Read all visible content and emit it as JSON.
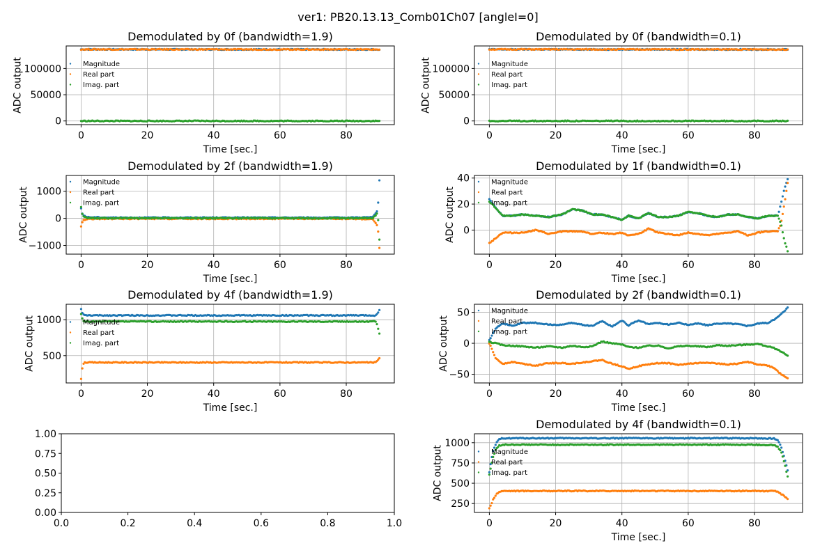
{
  "figure": {
    "suptitle": "ver1: PB20.13.13_Comb01Ch07 [angleI=0]"
  },
  "colors": {
    "magnitude": "#1f77b4",
    "real": "#ff7f0e",
    "imag": "#2ca02c",
    "grid": "#b0b0b0"
  },
  "chart_data": [
    {
      "id": "p00",
      "type": "scatter",
      "title": "Demodulated by 0f (bandwidth=1.9)",
      "xlabel": "Time [sec.]",
      "ylabel": "ADC output",
      "xlim": [
        -4.5,
        94.5
      ],
      "ylim": [
        -7000,
        143000
      ],
      "xticks": [
        0,
        20,
        40,
        60,
        80
      ],
      "yticks": [
        0,
        50000,
        100000
      ],
      "ytick_labels": [
        "0",
        "50000",
        "100000"
      ],
      "grid": true,
      "legend": {
        "position": "center-left",
        "entries": [
          "Magnitude",
          "Real part",
          "Imag. part"
        ]
      },
      "series": [
        {
          "name": "Magnitude",
          "x": [
            0,
            90
          ],
          "y": [
            136500,
            136300
          ]
        },
        {
          "name": "Real part",
          "x": [
            0,
            90
          ],
          "y": [
            136500,
            136300
          ]
        },
        {
          "name": "Imag. part",
          "x": [
            0,
            90
          ],
          "y": [
            0,
            0
          ]
        }
      ]
    },
    {
      "id": "p01",
      "type": "scatter",
      "title": "Demodulated by 0f (bandwidth=0.1)",
      "xlabel": "Time [sec.]",
      "ylabel": "ADC output",
      "xlim": [
        -4.5,
        94.5
      ],
      "ylim": [
        -7000,
        143000
      ],
      "xticks": [
        0,
        20,
        40,
        60,
        80
      ],
      "yticks": [
        0,
        50000,
        100000
      ],
      "ytick_labels": [
        "0",
        "50000",
        "100000"
      ],
      "grid": true,
      "legend": {
        "position": "center-left",
        "entries": [
          "Magnitude",
          "Real part",
          "Imag. part"
        ]
      },
      "series": [
        {
          "name": "Magnitude",
          "x": [
            0,
            90
          ],
          "y": [
            136500,
            136300
          ]
        },
        {
          "name": "Real part",
          "x": [
            0,
            90
          ],
          "y": [
            136500,
            136300
          ]
        },
        {
          "name": "Imag. part",
          "x": [
            0,
            90
          ],
          "y": [
            0,
            0
          ]
        }
      ]
    },
    {
      "id": "p10",
      "type": "scatter",
      "title": "Demodulated by 2f (bandwidth=1.9)",
      "xlabel": "Time [sec.]",
      "ylabel": "ADC output",
      "xlim": [
        -4.5,
        94.5
      ],
      "ylim": [
        -1320,
        1580
      ],
      "xticks": [
        0,
        20,
        40,
        60,
        80
      ],
      "yticks": [
        -1000,
        0,
        1000
      ],
      "ytick_labels": [
        "−1000",
        "0",
        "1000"
      ],
      "grid": true,
      "legend": {
        "position": "top-left",
        "entries": [
          "Magnitude",
          "Real part",
          "Imag. part"
        ]
      },
      "series": [
        {
          "name": "Magnitude",
          "x": [
            0,
            0.5,
            2,
            10,
            20,
            30,
            40,
            50,
            60,
            70,
            80,
            88,
            89.5,
            90
          ],
          "y": [
            350,
            120,
            40,
            25,
            25,
            25,
            25,
            25,
            25,
            25,
            25,
            40,
            300,
            1400
          ]
        },
        {
          "name": "Real part",
          "x": [
            0,
            0.5,
            2,
            10,
            20,
            30,
            40,
            50,
            60,
            70,
            80,
            88,
            89.5,
            90
          ],
          "y": [
            -300,
            -80,
            -20,
            -15,
            -15,
            -15,
            -15,
            -15,
            -15,
            -15,
            -15,
            -30,
            -300,
            -1100
          ]
        },
        {
          "name": "Imag. part",
          "x": [
            0,
            0.5,
            2,
            10,
            20,
            30,
            40,
            50,
            60,
            70,
            80,
            88,
            89.5,
            90
          ],
          "y": [
            400,
            100,
            10,
            5,
            5,
            5,
            5,
            5,
            5,
            5,
            5,
            10,
            200,
            -800
          ]
        }
      ]
    },
    {
      "id": "p11",
      "type": "scatter",
      "title": "Demodulated by 1f (bandwidth=0.1)",
      "xlabel": "Time [sec.]",
      "ylabel": "ADC output",
      "xlim": [
        -4.5,
        94.5
      ],
      "ylim": [
        -18.5,
        42
      ],
      "xticks": [
        0,
        20,
        40,
        60,
        80
      ],
      "yticks": [
        0,
        20,
        40
      ],
      "ytick_labels": [
        "0",
        "20",
        "40"
      ],
      "grid": true,
      "legend": {
        "position": "top-left",
        "entries": [
          "Magnitude",
          "Real part",
          "Imag. part"
        ]
      },
      "series": [
        {
          "name": "Magnitude",
          "x": [
            0,
            2,
            4,
            7,
            10,
            14,
            18,
            22,
            25,
            28,
            31,
            34,
            37,
            40,
            42,
            45,
            48,
            51,
            54,
            57,
            60,
            63,
            66,
            69,
            72,
            75,
            78,
            81,
            84,
            87,
            88,
            89,
            90
          ],
          "y": [
            24,
            17,
            11,
            11,
            12,
            11,
            10,
            12,
            16,
            15,
            12,
            12,
            10,
            8,
            11,
            9,
            13,
            10,
            10,
            11,
            14,
            13,
            11,
            10,
            12,
            12,
            10,
            9,
            11,
            11,
            20,
            32,
            39
          ]
        },
        {
          "name": "Real part",
          "x": [
            0,
            2,
            4,
            7,
            10,
            14,
            18,
            22,
            25,
            28,
            31,
            34,
            37,
            40,
            42,
            45,
            48,
            51,
            54,
            57,
            60,
            63,
            66,
            69,
            72,
            75,
            78,
            81,
            84,
            87,
            88,
            89,
            90
          ],
          "y": [
            -10,
            -6,
            -2,
            -2,
            -2,
            0,
            -3,
            -1,
            -1,
            -1,
            -3,
            -2,
            -3,
            -2,
            -4,
            -3,
            1,
            -2,
            -3,
            -4,
            -2,
            -3,
            -4,
            -3,
            -2,
            -1,
            -4,
            -2,
            -1,
            -1,
            5,
            20,
            36
          ]
        },
        {
          "name": "Imag. part",
          "x": [
            0,
            2,
            4,
            7,
            10,
            14,
            18,
            22,
            25,
            28,
            31,
            34,
            37,
            40,
            42,
            45,
            48,
            51,
            54,
            57,
            60,
            63,
            66,
            69,
            72,
            75,
            78,
            81,
            84,
            87,
            88,
            89,
            90
          ],
          "y": [
            22,
            17,
            11,
            11,
            12,
            11,
            10,
            12,
            16,
            15,
            12,
            12,
            10,
            8,
            11,
            9,
            13,
            10,
            10,
            11,
            14,
            13,
            11,
            10,
            12,
            12,
            10,
            9,
            11,
            11,
            5,
            -8,
            -16
          ]
        }
      ]
    },
    {
      "id": "p20",
      "type": "scatter",
      "title": "Demodulated by 4f (bandwidth=1.9)",
      "xlabel": "Time [sec.]",
      "ylabel": "ADC output",
      "xlim": [
        -4.5,
        94.5
      ],
      "ylim": [
        120,
        1215
      ],
      "xticks": [
        0,
        20,
        40,
        60,
        80
      ],
      "yticks": [
        500,
        1000
      ],
      "ytick_labels": [
        "500",
        "1000"
      ],
      "grid": true,
      "legend": {
        "position": "center-left",
        "entries": [
          "Magnitude",
          "Real part",
          "Imag. part"
        ]
      },
      "series": [
        {
          "name": "Magnitude",
          "x": [
            0,
            0.5,
            1,
            10,
            20,
            30,
            40,
            50,
            60,
            70,
            80,
            89,
            90
          ],
          "y": [
            1150,
            1080,
            1060,
            1060,
            1060,
            1060,
            1060,
            1060,
            1060,
            1060,
            1060,
            1060,
            1130
          ]
        },
        {
          "name": "Real part",
          "x": [
            0,
            0.5,
            1,
            10,
            20,
            30,
            40,
            50,
            60,
            70,
            80,
            89,
            90
          ],
          "y": [
            170,
            380,
            405,
            405,
            405,
            405,
            405,
            405,
            405,
            405,
            405,
            405,
            470
          ]
        },
        {
          "name": "Imag. part",
          "x": [
            0,
            0.5,
            1,
            10,
            20,
            30,
            40,
            50,
            60,
            70,
            80,
            89,
            90
          ],
          "y": [
            1080,
            990,
            975,
            975,
            975,
            975,
            975,
            975,
            975,
            975,
            975,
            975,
            810
          ]
        }
      ]
    },
    {
      "id": "p21",
      "type": "scatter",
      "title": "Demodulated by 2f (bandwidth=0.1)",
      "xlabel": "Time [sec.]",
      "ylabel": "ADC output",
      "xlim": [
        -4.5,
        94.5
      ],
      "ylim": [
        -64,
        63
      ],
      "xticks": [
        0,
        20,
        40,
        60,
        80
      ],
      "yticks": [
        -50,
        0,
        50
      ],
      "ytick_labels": [
        "−50",
        "0",
        "50"
      ],
      "grid": true,
      "legend": {
        "position": "top-left",
        "entries": [
          "Magnitude",
          "Real part",
          "Imag. part"
        ]
      },
      "series": [
        {
          "name": "Magnitude",
          "x": [
            0,
            2,
            4,
            7,
            10,
            14,
            18,
            22,
            25,
            28,
            31,
            34,
            37,
            40,
            42,
            45,
            48,
            51,
            54,
            57,
            60,
            63,
            66,
            69,
            72,
            75,
            78,
            81,
            84,
            86,
            88,
            90
          ],
          "y": [
            5,
            25,
            32,
            28,
            33,
            33,
            30,
            30,
            33,
            30,
            28,
            36,
            27,
            37,
            29,
            37,
            31,
            33,
            30,
            33,
            30,
            32,
            29,
            32,
            32,
            31,
            28,
            32,
            33,
            38,
            47,
            57
          ]
        },
        {
          "name": "Real part",
          "x": [
            0,
            2,
            4,
            7,
            10,
            14,
            18,
            22,
            25,
            28,
            31,
            34,
            37,
            40,
            42,
            45,
            48,
            51,
            54,
            57,
            60,
            63,
            66,
            69,
            72,
            75,
            78,
            81,
            84,
            86,
            88,
            90
          ],
          "y": [
            0,
            -25,
            -33,
            -30,
            -33,
            -36,
            -32,
            -32,
            -33,
            -31,
            -29,
            -27,
            -33,
            -37,
            -41,
            -37,
            -34,
            -32,
            -32,
            -35,
            -33,
            -32,
            -31,
            -33,
            -34,
            -33,
            -30,
            -34,
            -36,
            -40,
            -50,
            -56
          ]
        },
        {
          "name": "Imag. part",
          "x": [
            0,
            2,
            4,
            7,
            10,
            14,
            18,
            22,
            25,
            28,
            31,
            34,
            37,
            40,
            42,
            45,
            48,
            51,
            54,
            57,
            60,
            63,
            66,
            69,
            72,
            75,
            78,
            81,
            84,
            86,
            88,
            90
          ],
          "y": [
            2,
            0,
            -3,
            -4,
            -5,
            -7,
            -5,
            -7,
            -4,
            -6,
            -5,
            3,
            0,
            -2,
            -6,
            -7,
            -4,
            -4,
            -8,
            -5,
            -4,
            -5,
            -6,
            -3,
            -4,
            -3,
            -2,
            -1,
            -5,
            -8,
            -13,
            -20
          ]
        }
      ]
    },
    {
      "id": "p30",
      "type": "scatter",
      "title": "",
      "xlabel": "",
      "ylabel": "",
      "xlim": [
        0,
        1
      ],
      "ylim": [
        0,
        1
      ],
      "xticks": [
        0,
        0.2,
        0.4,
        0.6,
        0.8,
        1.0
      ],
      "xtick_labels": [
        "0.0",
        "0.2",
        "0.4",
        "0.6",
        "0.8",
        "1.0"
      ],
      "yticks": [
        0,
        0.25,
        0.5,
        0.75,
        1.0
      ],
      "ytick_labels": [
        "0.00",
        "0.25",
        "0.50",
        "0.75",
        "1.00"
      ],
      "grid": false,
      "series": []
    },
    {
      "id": "p31",
      "type": "scatter",
      "title": "Demodulated by 4f (bandwidth=0.1)",
      "xlabel": "Time [sec.]",
      "ylabel": "ADC output",
      "xlim": [
        -4.5,
        94.5
      ],
      "ylim": [
        140,
        1110
      ],
      "xticks": [
        0,
        20,
        40,
        60,
        80
      ],
      "yticks": [
        250,
        500,
        750,
        1000
      ],
      "ytick_labels": [
        "250",
        "500",
        "750",
        "1000"
      ],
      "grid": true,
      "legend": {
        "position": "center-left",
        "entries": [
          "Magnitude",
          "Real part",
          "Imag. part"
        ]
      },
      "series": [
        {
          "name": "Magnitude",
          "x": [
            0,
            0.5,
            1,
            2,
            3,
            4,
            10,
            20,
            30,
            40,
            50,
            60,
            70,
            80,
            86,
            87,
            88,
            89,
            90
          ],
          "y": [
            640,
            760,
            880,
            990,
            1040,
            1055,
            1055,
            1055,
            1055,
            1055,
            1055,
            1055,
            1055,
            1055,
            1050,
            1030,
            960,
            820,
            660
          ]
        },
        {
          "name": "Real part",
          "x": [
            0,
            0.5,
            1,
            2,
            3,
            4,
            10,
            20,
            30,
            40,
            50,
            60,
            70,
            80,
            86,
            87,
            88,
            89,
            90
          ],
          "y": [
            190,
            230,
            290,
            360,
            395,
            405,
            405,
            405,
            405,
            405,
            405,
            405,
            405,
            405,
            403,
            395,
            370,
            340,
            305
          ]
        },
        {
          "name": "Imag. part",
          "x": [
            0,
            0.5,
            1,
            2,
            3,
            4,
            10,
            20,
            30,
            40,
            50,
            60,
            70,
            80,
            86,
            87,
            88,
            89,
            90
          ],
          "y": [
            610,
            700,
            810,
            920,
            965,
            975,
            975,
            975,
            975,
            975,
            975,
            975,
            975,
            975,
            970,
            950,
            890,
            760,
            580
          ]
        }
      ]
    }
  ]
}
